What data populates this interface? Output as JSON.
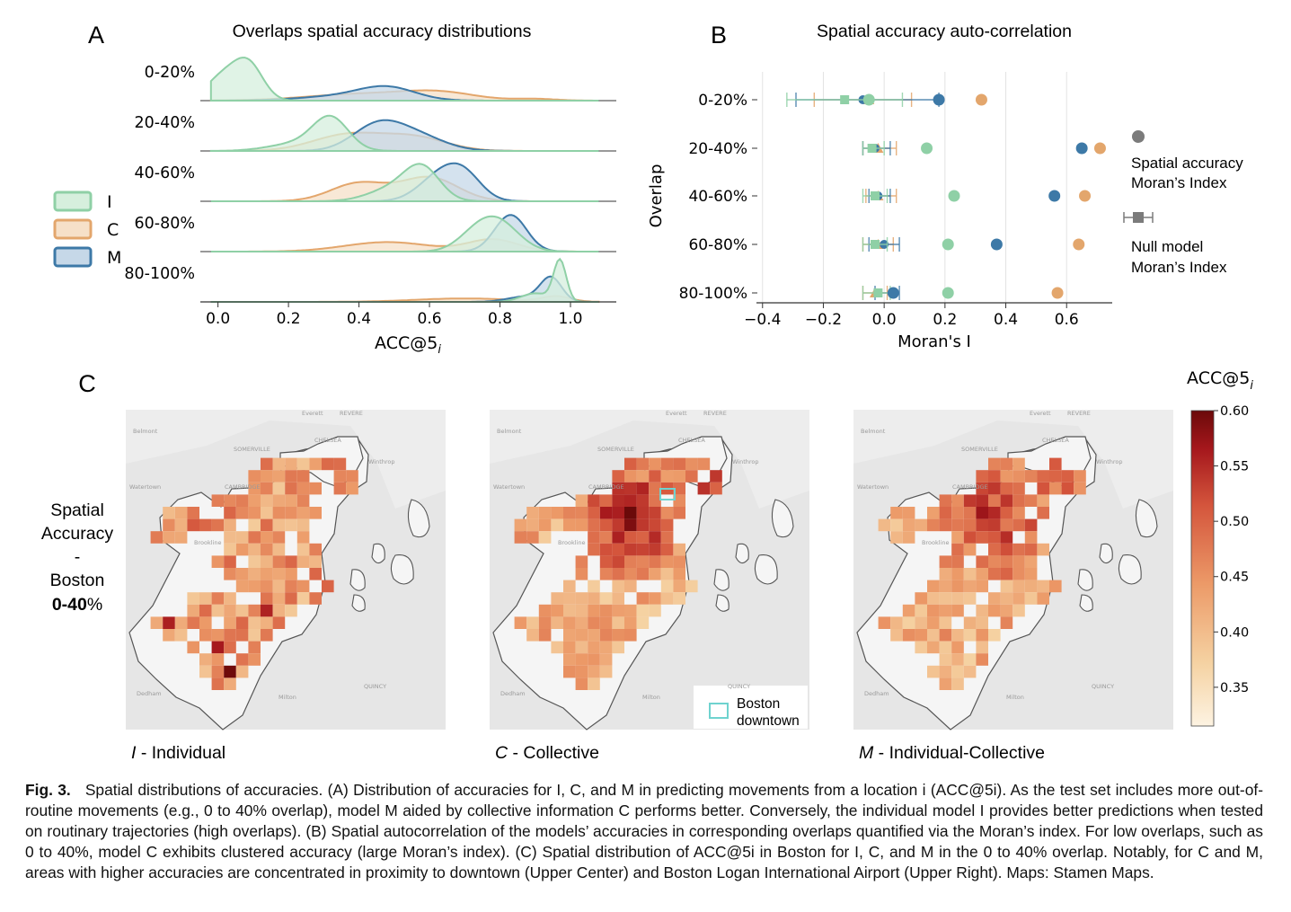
{
  "panel_letters": {
    "a": "A",
    "b": "B",
    "c": "C"
  },
  "chart_data": [
    {
      "type": "area",
      "title": "Overlaps spatial accuracy distributions",
      "xlabel": "ACC@5",
      "xlabel_subscript": "i",
      "xlim": [
        -0.05,
        1.13
      ],
      "xticks": [
        "0.0",
        "0.2",
        "0.4",
        "0.6",
        "0.8",
        "1.0"
      ],
      "xtick_values": [
        0.0,
        0.2,
        0.4,
        0.6,
        0.8,
        1.0
      ],
      "rows": [
        "0-20%",
        "20-40%",
        "40-60%",
        "60-80%",
        "80-100%"
      ],
      "legend": [
        {
          "name": "I",
          "color": "#8fd0a6",
          "fill": "#d6efdd"
        },
        {
          "name": "C",
          "color": "#e3a66c",
          "fill": "#f6e0c8"
        },
        {
          "name": "M",
          "color": "#3d79a7",
          "fill": "#c6d8e8"
        }
      ],
      "series_peaks": {
        "0-20%": {
          "I": [
            [
              0.02,
              0.05,
              0.6
            ],
            [
              0.09,
              0.04,
              0.72
            ]
          ],
          "C": [
            [
              0.42,
              0.16,
              0.16
            ],
            [
              0.63,
              0.1,
              0.16
            ],
            [
              0.9,
              0.06,
              0.04
            ]
          ],
          "M": [
            [
              0.48,
              0.08,
              0.28
            ],
            [
              0.35,
              0.12,
              0.1
            ]
          ]
        },
        "20-40%": {
          "I": [
            [
              0.32,
              0.05,
              0.72
            ],
            [
              0.23,
              0.08,
              0.18
            ]
          ],
          "C": [
            [
              0.37,
              0.1,
              0.38
            ],
            [
              0.56,
              0.09,
              0.3
            ]
          ],
          "M": [
            [
              0.45,
              0.07,
              0.55
            ],
            [
              0.56,
              0.08,
              0.35
            ]
          ]
        },
        "40-60%": {
          "I": [
            [
              0.58,
              0.05,
              0.7
            ],
            [
              0.5,
              0.07,
              0.3
            ]
          ],
          "C": [
            [
              0.4,
              0.08,
              0.42
            ],
            [
              0.6,
              0.08,
              0.55
            ]
          ],
          "M": [
            [
              0.63,
              0.06,
              0.58
            ],
            [
              0.7,
              0.05,
              0.5
            ]
          ]
        },
        "60-80%": {
          "I": [
            [
              0.79,
              0.06,
              0.72
            ],
            [
              0.72,
              0.05,
              0.22
            ]
          ],
          "C": [
            [
              0.48,
              0.12,
              0.22
            ],
            [
              0.78,
              0.07,
              0.28
            ]
          ],
          "M": [
            [
              0.83,
              0.045,
              0.85
            ]
          ]
        },
        "80-100%": {
          "I": [
            [
              0.97,
              0.018,
              0.95
            ],
            [
              0.9,
              0.04,
              0.2
            ]
          ],
          "C": [
            [
              0.7,
              0.14,
              0.08
            ],
            [
              0.96,
              0.04,
              0.12
            ]
          ],
          "M": [
            [
              0.945,
              0.03,
              0.55
            ],
            [
              0.87,
              0.05,
              0.12
            ]
          ]
        }
      }
    },
    {
      "type": "scatter",
      "title": "Spatial accuracy auto-correlation",
      "xlabel": "Moran's I",
      "ylabel": "Overlap",
      "xlim": [
        -0.42,
        0.75
      ],
      "xticks": [
        "−0.4",
        "−0.2",
        "0.0",
        "0.2",
        "0.4",
        "0.6"
      ],
      "xtick_values": [
        -0.4,
        -0.2,
        0.0,
        0.2,
        0.4,
        0.6
      ],
      "categories": [
        "0-20%",
        "20-40%",
        "40-60%",
        "60-80%",
        "80-100%"
      ],
      "series": [
        {
          "name": "I",
          "color": "#8fd0a6",
          "values": [
            -0.05,
            0.14,
            0.23,
            0.21,
            0.21
          ]
        },
        {
          "name": "C",
          "color": "#e3a66c",
          "values": [
            0.32,
            0.71,
            0.66,
            0.64,
            0.57
          ]
        },
        {
          "name": "M",
          "color": "#3d79a7",
          "values": [
            0.18,
            0.65,
            0.56,
            0.37,
            0.03
          ]
        }
      ],
      "null_model": [
        {
          "I": [
            -0.13,
            -0.32,
            0.06
          ],
          "C": [
            -0.05,
            -0.23,
            0.09
          ],
          "M": [
            -0.07,
            -0.29,
            0.18
          ]
        },
        {
          "I": [
            -0.04,
            -0.07,
            0.0
          ],
          "C": [
            -0.02,
            -0.07,
            0.04
          ],
          "M": [
            -0.03,
            -0.07,
            0.02
          ]
        },
        {
          "I": [
            -0.03,
            -0.07,
            0.01
          ],
          "C": [
            -0.02,
            -0.06,
            0.04
          ],
          "M": [
            -0.02,
            -0.05,
            0.02
          ]
        },
        {
          "I": [
            -0.03,
            -0.07,
            0.01
          ],
          "C": [
            -0.02,
            -0.07,
            0.03
          ],
          "M": [
            0.0,
            -0.05,
            0.05
          ]
        },
        {
          "I": [
            -0.02,
            -0.07,
            0.02
          ],
          "C": [
            -0.03,
            -0.07,
            0.01
          ],
          "M": [
            0.03,
            -0.03,
            0.05
          ]
        }
      ],
      "legend": [
        {
          "marker": "circle",
          "lines": [
            "Spatial accuracy",
            "Moran’s Index"
          ]
        },
        {
          "marker": "square-errorbar",
          "lines": [
            "Null model",
            "Moran’s Index"
          ]
        }
      ]
    },
    {
      "type": "heatmap",
      "row_label": [
        "Spatial",
        "Accuracy",
        "-",
        "Boston"
      ],
      "row_label_bold": "0-40",
      "row_label_suffix": "%",
      "maps": [
        {
          "prefix": "I",
          "label": " - Individual"
        },
        {
          "prefix": "C",
          "label": " - Collective"
        },
        {
          "prefix": "M",
          "label": " - Individual-Collective"
        }
      ],
      "colorbar_title": "ACC@5",
      "colorbar_subscript": "i",
      "colorbar_range": [
        0.315,
        0.6
      ],
      "colorbar_ticks": [
        "0.60",
        "0.55",
        "0.50",
        "0.45",
        "0.40",
        "0.35"
      ],
      "colorbar_tick_values": [
        0.6,
        0.55,
        0.5,
        0.45,
        0.4,
        0.35
      ],
      "downtown_label": [
        "Boston",
        "downtown"
      ],
      "place_names": [
        "SOMERVILLE",
        "CHELSEA",
        "CAMBRIDGE",
        "Winthrop",
        "Brookline",
        "QUINCY",
        "Dedham",
        "Milton",
        "Everett",
        "REVERE",
        "Belmont",
        "Watertown"
      ]
    }
  ],
  "caption": {
    "fig": "Fig. 3.",
    "text": "Spatial distributions of accuracies. (A) Distribution of accuracies for I, C, and M in predicting movements from a location i (ACC@5i). As the test set includes more out-of-routine movements (e.g., 0 to 40% overlap), model M aided by collective information C performs better. Conversely, the individual model I provides better predictions when tested on routinary trajectories (high overlaps). (B) Spatial autocorrelation of the models’ accuracies in corresponding overlaps quantified via the Moran’s index. For low overlaps, such as 0 to 40%, model C exhibits clustered accuracy (large Moran’s index). (C) Spatial distribution of ACC@5i in Boston for I, C, and M in the 0 to 40% overlap. Notably, for C and M, areas with higher accuracies are concentrated in proximity to downtown (Upper Center) and Boston Logan International Airport (Upper Right). Maps: Stamen Maps."
  }
}
